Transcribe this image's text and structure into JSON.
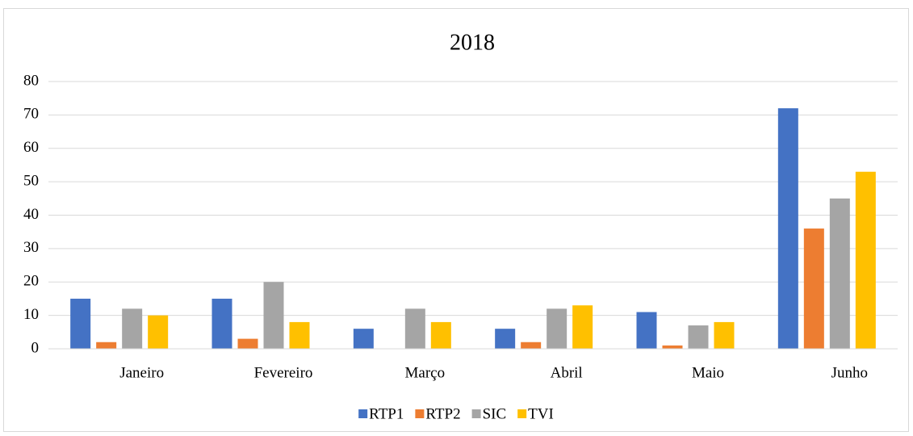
{
  "chart_data": {
    "type": "bar",
    "title": "2018",
    "categories": [
      "Janeiro",
      "Fevereiro",
      "Março",
      "Abril",
      "Maio",
      "Junho"
    ],
    "series": [
      {
        "name": "RTP1",
        "color": "#4472c4",
        "values": [
          15,
          15,
          6,
          6,
          11,
          72
        ]
      },
      {
        "name": "RTP2",
        "color": "#ed7d31",
        "values": [
          2,
          3,
          0,
          2,
          1,
          36
        ]
      },
      {
        "name": "SIC",
        "color": "#a5a5a5",
        "values": [
          12,
          20,
          12,
          12,
          7,
          45
        ]
      },
      {
        "name": "TVI",
        "color": "#ffc000",
        "values": [
          10,
          8,
          8,
          13,
          8,
          53
        ]
      }
    ],
    "ylim": [
      0,
      80
    ],
    "yticks": [
      0,
      10,
      20,
      30,
      40,
      50,
      60,
      70,
      80
    ],
    "grid": true,
    "legend": "bottom"
  }
}
